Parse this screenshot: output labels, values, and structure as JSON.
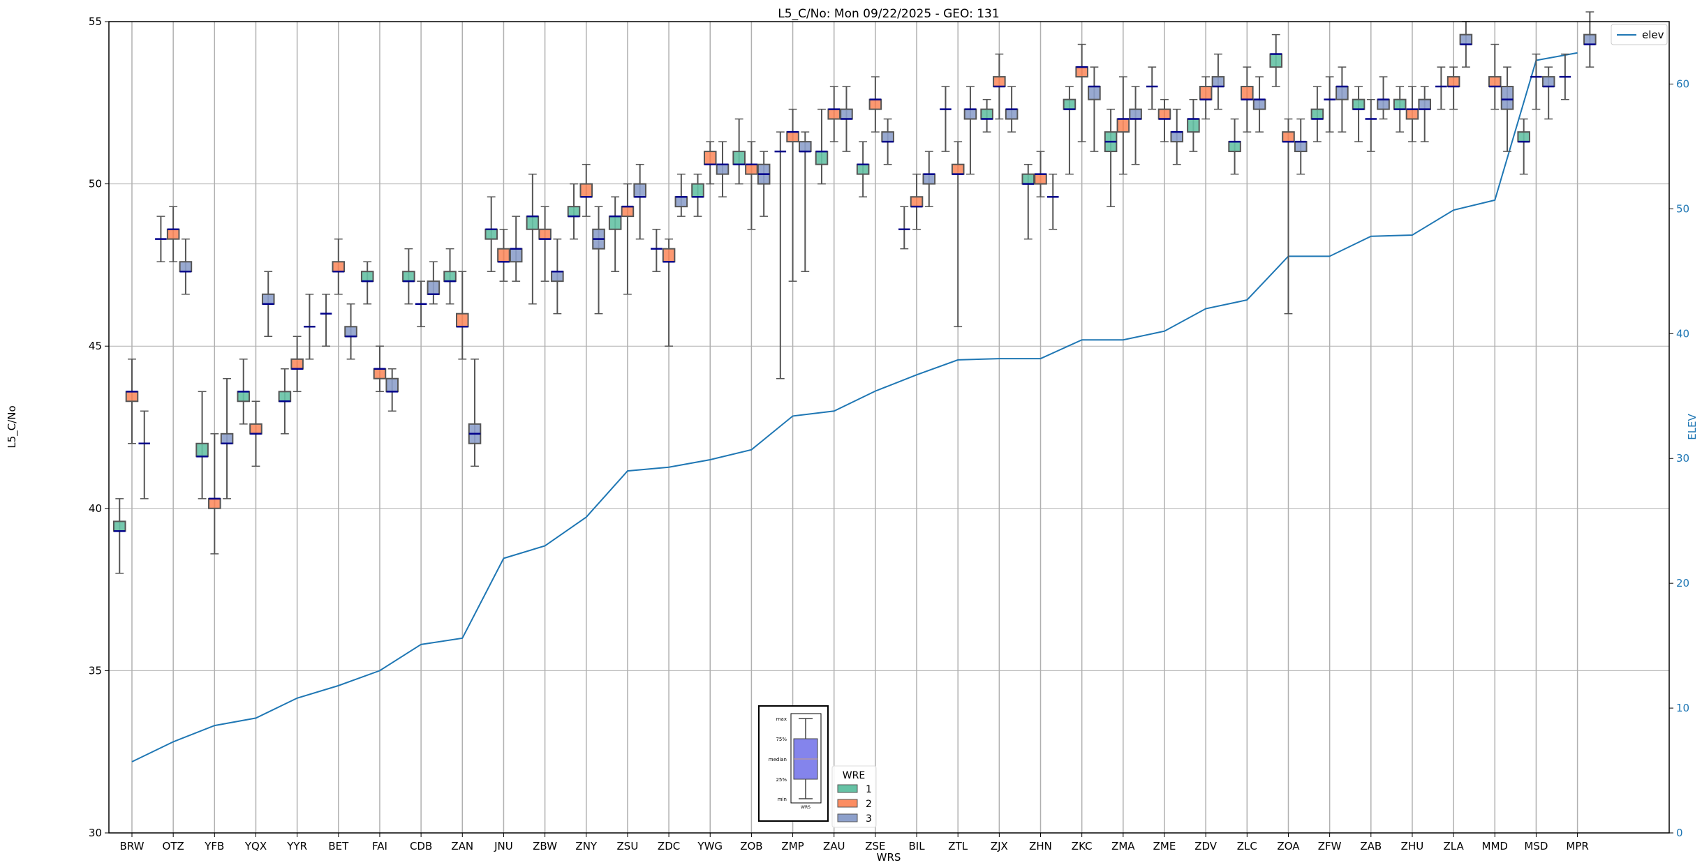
{
  "chart_data": {
    "type": "box",
    "title": "L5_C/No: Mon 09/22/2025 - GEO: 131",
    "xlabel": "WRS",
    "ylabel": "L5_C/No",
    "y2label": "ELEV",
    "ylim": [
      30,
      55
    ],
    "y2lim": [
      0,
      65
    ],
    "yticks": [
      30,
      35,
      40,
      45,
      50,
      55
    ],
    "y2ticks": [
      0,
      10,
      20,
      30,
      40,
      50,
      60
    ],
    "grid": true,
    "categories": [
      "BRW",
      "OTZ",
      "YFB",
      "YQX",
      "YYR",
      "BET",
      "FAI",
      "CDB",
      "ZAN",
      "JNU",
      "ZBW",
      "ZNY",
      "ZSU",
      "ZDC",
      "YWG",
      "ZOB",
      "ZMP",
      "ZAU",
      "ZSE",
      "BIL",
      "ZTL",
      "ZJX",
      "ZHN",
      "ZKC",
      "ZMA",
      "ZME",
      "ZDV",
      "ZLC",
      "ZOA",
      "ZFW",
      "ZAB",
      "ZHU",
      "ZLA",
      "MMD",
      "MSD",
      "MPR"
    ],
    "box_stat_order": [
      "min",
      "q1",
      "median",
      "q3",
      "max"
    ],
    "hue_title": "WRE",
    "hue_levels": [
      {
        "name": "1",
        "color": "#66c2a5"
      },
      {
        "name": "2",
        "color": "#fc8d62"
      },
      {
        "name": "3",
        "color": "#8da0cb"
      }
    ],
    "median_color": "#00008b",
    "boxes": [
      [
        [
          38.0,
          39.3,
          39.3,
          39.6,
          40.3
        ],
        [
          42.0,
          43.3,
          43.6,
          43.6,
          44.6
        ],
        [
          40.3,
          42.0,
          42.0,
          42.0,
          43.0
        ]
      ],
      [
        [
          47.6,
          48.3,
          48.3,
          48.3,
          49.0
        ],
        [
          47.6,
          48.3,
          48.6,
          48.6,
          49.3
        ],
        [
          46.6,
          47.3,
          47.3,
          47.6,
          48.3
        ]
      ],
      [
        [
          40.3,
          41.6,
          41.6,
          42.0,
          43.6
        ],
        [
          38.6,
          40.0,
          40.3,
          40.3,
          42.3
        ],
        [
          40.3,
          42.0,
          42.0,
          42.3,
          44.0
        ]
      ],
      [
        [
          42.6,
          43.3,
          43.6,
          43.6,
          44.6
        ],
        [
          41.3,
          42.3,
          42.3,
          42.6,
          43.3
        ],
        [
          45.3,
          46.3,
          46.3,
          46.6,
          47.3
        ]
      ],
      [
        [
          42.3,
          43.3,
          43.3,
          43.6,
          44.3
        ],
        [
          43.6,
          44.3,
          44.3,
          44.6,
          45.3
        ],
        [
          44.6,
          45.6,
          45.6,
          45.6,
          46.6
        ]
      ],
      [
        [
          45.0,
          46.0,
          46.0,
          46.0,
          46.6
        ],
        [
          46.6,
          47.3,
          47.3,
          47.6,
          48.3
        ],
        [
          44.6,
          45.3,
          45.3,
          45.6,
          46.3
        ]
      ],
      [
        [
          46.3,
          47.0,
          47.0,
          47.3,
          47.6
        ],
        [
          43.6,
          44.0,
          44.3,
          44.3,
          45.0
        ],
        [
          43.0,
          43.6,
          43.6,
          44.0,
          44.3
        ]
      ],
      [
        [
          46.3,
          47.0,
          47.0,
          47.3,
          48.0
        ],
        [
          45.6,
          46.3,
          46.3,
          46.3,
          47.0
        ],
        [
          46.3,
          46.6,
          46.6,
          47.0,
          47.6
        ]
      ],
      [
        [
          46.3,
          47.0,
          47.0,
          47.3,
          48.0
        ],
        [
          44.6,
          45.6,
          45.6,
          46.0,
          47.3
        ],
        [
          41.3,
          42.0,
          42.3,
          42.6,
          44.6
        ]
      ],
      [
        [
          47.3,
          48.3,
          48.6,
          48.6,
          49.6
        ],
        [
          47.0,
          47.6,
          47.6,
          48.0,
          48.6
        ],
        [
          47.0,
          47.6,
          48.0,
          48.0,
          49.0
        ]
      ],
      [
        [
          46.3,
          48.6,
          49.0,
          49.0,
          50.3
        ],
        [
          47.0,
          48.3,
          48.3,
          48.6,
          49.3
        ],
        [
          46.0,
          47.0,
          47.3,
          47.3,
          48.3
        ]
      ],
      [
        [
          48.3,
          49.0,
          49.0,
          49.3,
          50.0
        ],
        [
          49.0,
          49.6,
          49.6,
          50.0,
          50.6
        ],
        [
          46.0,
          48.0,
          48.3,
          48.6,
          49.3
        ]
      ],
      [
        [
          47.3,
          48.6,
          49.0,
          49.0,
          49.6
        ],
        [
          46.6,
          49.0,
          49.3,
          49.3,
          50.0
        ],
        [
          48.3,
          49.6,
          49.6,
          50.0,
          50.6
        ]
      ],
      [
        [
          47.3,
          48.0,
          48.0,
          48.0,
          48.6
        ],
        [
          45.0,
          47.6,
          47.6,
          48.0,
          48.3
        ],
        [
          49.0,
          49.3,
          49.6,
          49.6,
          50.3
        ]
      ],
      [
        [
          49.0,
          49.6,
          49.6,
          50.0,
          50.3
        ],
        [
          50.0,
          50.6,
          50.6,
          51.0,
          51.3
        ],
        [
          49.6,
          50.3,
          50.6,
          50.6,
          51.3
        ]
      ],
      [
        [
          50.0,
          50.6,
          50.6,
          51.0,
          52.0
        ],
        [
          48.6,
          50.3,
          50.6,
          50.6,
          51.3
        ],
        [
          49.0,
          50.0,
          50.3,
          50.6,
          51.0
        ]
      ],
      [
        [
          44.0,
          51.0,
          51.0,
          51.0,
          51.6
        ],
        [
          47.0,
          51.3,
          51.6,
          51.6,
          52.3
        ],
        [
          47.3,
          51.0,
          51.0,
          51.3,
          51.6
        ]
      ],
      [
        [
          50.0,
          50.6,
          51.0,
          51.0,
          52.3
        ],
        [
          51.3,
          52.0,
          52.3,
          52.3,
          53.0
        ],
        [
          51.0,
          52.0,
          52.0,
          52.3,
          53.0
        ]
      ],
      [
        [
          49.6,
          50.3,
          50.6,
          50.6,
          51.3
        ],
        [
          51.6,
          52.3,
          52.6,
          52.6,
          53.3
        ],
        [
          50.6,
          51.3,
          51.3,
          51.6,
          52.0
        ]
      ],
      [
        [
          48.0,
          48.6,
          48.6,
          48.6,
          49.3
        ],
        [
          48.6,
          49.3,
          49.3,
          49.6,
          50.3
        ],
        [
          49.3,
          50.0,
          50.3,
          50.3,
          51.0
        ]
      ],
      [
        [
          51.0,
          52.3,
          52.3,
          52.3,
          53.0
        ],
        [
          45.6,
          50.3,
          50.3,
          50.6,
          51.3
        ],
        [
          50.3,
          52.0,
          52.3,
          52.3,
          53.0
        ]
      ],
      [
        [
          51.6,
          52.0,
          52.0,
          52.3,
          52.6
        ],
        [
          52.0,
          53.0,
          53.0,
          53.3,
          54.0
        ],
        [
          51.6,
          52.0,
          52.3,
          52.3,
          53.0
        ]
      ],
      [
        [
          48.3,
          50.0,
          50.0,
          50.3,
          50.6
        ],
        [
          49.6,
          50.0,
          50.3,
          50.3,
          51.0
        ],
        [
          48.6,
          49.6,
          49.6,
          49.6,
          50.3
        ]
      ],
      [
        [
          50.3,
          52.3,
          52.3,
          52.6,
          53.0
        ],
        [
          51.3,
          53.3,
          53.6,
          53.6,
          54.3
        ],
        [
          51.0,
          52.6,
          53.0,
          53.0,
          53.6
        ]
      ],
      [
        [
          49.3,
          51.0,
          51.3,
          51.6,
          52.3
        ],
        [
          50.3,
          51.6,
          52.0,
          52.0,
          53.3
        ],
        [
          50.6,
          52.0,
          52.0,
          52.3,
          53.0
        ]
      ],
      [
        [
          52.3,
          53.0,
          53.0,
          53.0,
          53.6
        ],
        [
          51.3,
          52.0,
          52.0,
          52.3,
          52.6
        ],
        [
          50.6,
          51.3,
          51.6,
          51.6,
          52.3
        ]
      ],
      [
        [
          51.0,
          51.6,
          52.0,
          52.0,
          52.6
        ],
        [
          52.0,
          52.6,
          52.6,
          53.0,
          53.3
        ],
        [
          52.3,
          53.0,
          53.0,
          53.3,
          54.0
        ]
      ],
      [
        [
          50.3,
          51.0,
          51.3,
          51.3,
          52.0
        ],
        [
          51.6,
          52.6,
          52.6,
          53.0,
          53.6
        ],
        [
          51.6,
          52.3,
          52.6,
          52.6,
          53.3
        ]
      ],
      [
        [
          53.0,
          53.6,
          54.0,
          54.0,
          54.6
        ],
        [
          46.0,
          51.3,
          51.3,
          51.6,
          52.0
        ],
        [
          50.3,
          51.0,
          51.3,
          51.3,
          52.0
        ]
      ],
      [
        [
          51.3,
          52.0,
          52.0,
          52.3,
          53.0
        ],
        [
          51.6,
          52.6,
          52.6,
          52.6,
          53.3
        ],
        [
          51.6,
          52.6,
          53.0,
          53.0,
          53.6
        ]
      ],
      [
        [
          51.3,
          52.3,
          52.3,
          52.6,
          53.0
        ],
        [
          51.0,
          52.0,
          52.0,
          52.0,
          52.6
        ],
        [
          52.0,
          52.3,
          52.6,
          52.6,
          53.3
        ]
      ],
      [
        [
          51.6,
          52.3,
          52.3,
          52.6,
          53.0
        ],
        [
          51.3,
          52.0,
          52.3,
          52.3,
          53.0
        ],
        [
          51.3,
          52.3,
          52.3,
          52.6,
          53.0
        ]
      ],
      [
        [
          52.3,
          53.0,
          53.0,
          53.0,
          53.6
        ],
        [
          52.3,
          53.0,
          53.0,
          53.3,
          53.6
        ],
        [
          53.6,
          54.3,
          54.3,
          54.6,
          55.0
        ]
      ],
      [
        null,
        [
          52.3,
          53.0,
          53.0,
          53.3,
          54.3
        ],
        [
          51.0,
          52.3,
          52.6,
          53.0,
          53.6
        ]
      ],
      [
        [
          50.3,
          51.3,
          51.3,
          51.6,
          52.0
        ],
        [
          52.3,
          53.3,
          53.3,
          53.3,
          54.0
        ],
        [
          52.0,
          53.0,
          53.0,
          53.3,
          53.6
        ]
      ],
      [
        [
          52.6,
          53.3,
          53.3,
          53.3,
          54.0
        ],
        null,
        [
          53.6,
          54.3,
          54.3,
          54.6,
          55.3
        ]
      ]
    ],
    "elev_series": {
      "name": "elev",
      "color": "#1f77b4",
      "values": [
        5.7,
        7.3,
        8.6,
        9.2,
        10.8,
        11.8,
        13.0,
        15.1,
        15.6,
        22.0,
        23.0,
        25.3,
        29.0,
        29.3,
        29.9,
        30.7,
        33.4,
        33.8,
        35.4,
        36.7,
        37.9,
        38.0,
        38.0,
        39.5,
        39.5,
        40.2,
        42.0,
        42.7,
        46.2,
        46.2,
        47.8,
        47.9,
        49.9,
        50.7,
        61.9,
        62.5
      ]
    },
    "legend_position": "upper-right",
    "hue_legend_position": "lower-center",
    "explainer": {
      "labels": [
        "max",
        "75%",
        "median",
        "25%",
        "min"
      ],
      "xlabel": "WRS",
      "box_color": "#8484ec"
    }
  }
}
